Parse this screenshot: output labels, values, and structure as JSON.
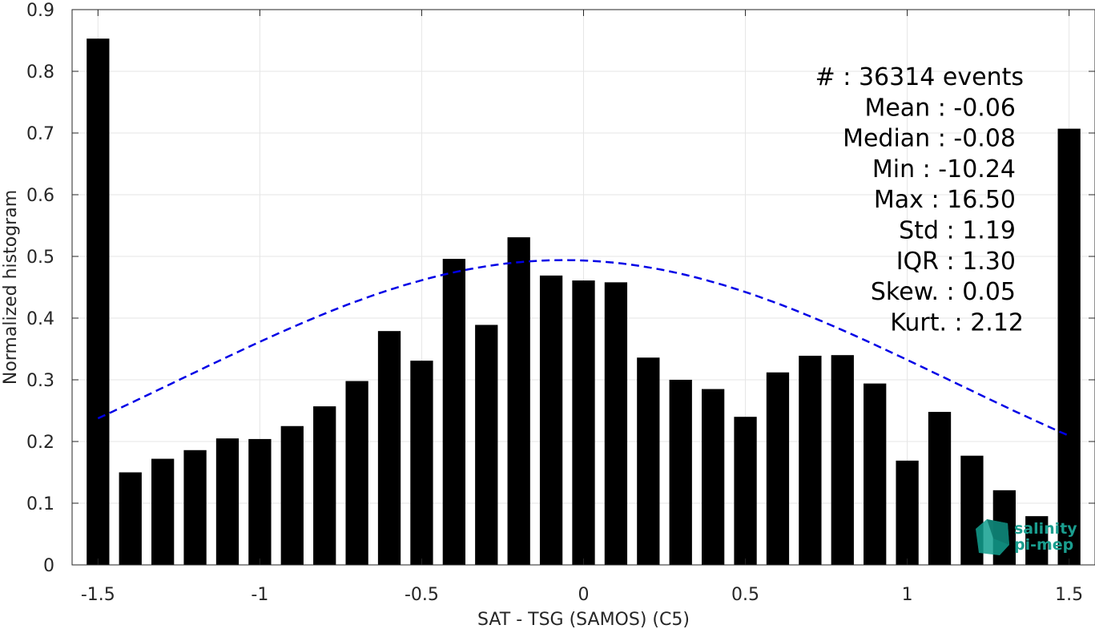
{
  "chart_data": {
    "type": "bar",
    "xlabel": "SAT - TSG (SAMOS) (C5)",
    "ylabel": "Normalized histogram",
    "xlim": [
      -1.58,
      1.58
    ],
    "ylim": [
      0,
      0.9
    ],
    "grid": true,
    "x_ticks": [
      -1.5,
      -1,
      -0.5,
      0,
      0.5,
      1,
      1.5
    ],
    "x_tick_labels": [
      "-1.5",
      "-1",
      "-0.5",
      "0",
      "0.5",
      "1",
      "1.5"
    ],
    "y_ticks": [
      0,
      0.1,
      0.2,
      0.3,
      0.4,
      0.5,
      0.6,
      0.7,
      0.8,
      0.9
    ],
    "y_tick_labels": [
      "0",
      "0.1",
      "0.2",
      "0.3",
      "0.4",
      "0.5",
      "0.6",
      "0.7",
      "0.8",
      "0.9"
    ],
    "bar_width": 0.07,
    "bar_color": "#000000",
    "bins": [
      -1.5,
      -1.4,
      -1.3,
      -1.2,
      -1.1,
      -1.0,
      -0.9,
      -0.8,
      -0.7,
      -0.6,
      -0.5,
      -0.4,
      -0.3,
      -0.2,
      -0.1,
      0.0,
      0.1,
      0.2,
      0.3,
      0.4,
      0.5,
      0.6,
      0.7,
      0.8,
      0.9,
      1.0,
      1.1,
      1.2,
      1.3,
      1.4,
      1.5
    ],
    "values": [
      0.853,
      0.15,
      0.172,
      0.186,
      0.205,
      0.204,
      0.225,
      0.257,
      0.298,
      0.379,
      0.331,
      0.496,
      0.389,
      0.531,
      0.469,
      0.461,
      0.458,
      0.336,
      0.3,
      0.285,
      0.24,
      0.312,
      0.339,
      0.34,
      0.294,
      0.169,
      0.248,
      0.177,
      0.121,
      0.079,
      0.707
    ],
    "fit_curve": {
      "type": "normal",
      "mean": -0.06,
      "std": 1.19,
      "peak": 0.494,
      "x_range": [
        -1.5,
        1.5
      ],
      "color": "#0000e6",
      "style": "dashed"
    },
    "stats": [
      "#  : 36314 events",
      "Mean : -0.06",
      "Median : -0.08",
      "Min : -10.24",
      "Max : 16.50",
      "Std : 1.19",
      "IQR : 1.30",
      "Skew. : 0.05",
      "Kurt. : 2.12"
    ]
  },
  "logo": {
    "line1": "salinity",
    "line2": "pi-mep"
  }
}
